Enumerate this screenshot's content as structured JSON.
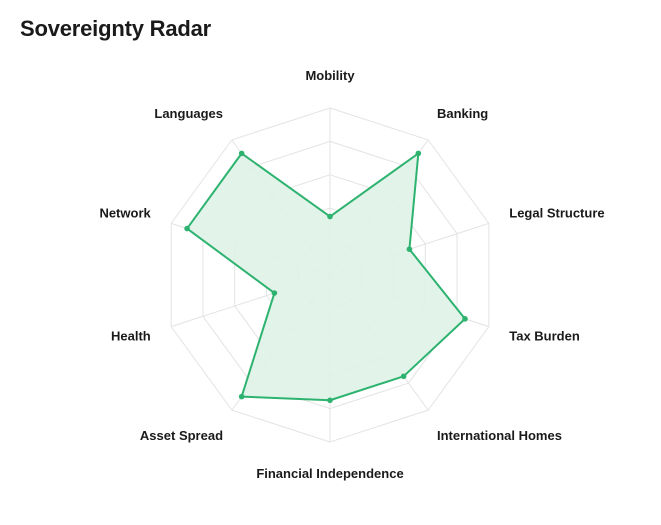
{
  "title": "Sovereignty Radar",
  "colors": {
    "series": "#2db36f",
    "fill": "#dff2e7",
    "grid": "#e3e3e3"
  },
  "chart_data": {
    "type": "radar",
    "title": "Sovereignty Radar",
    "grid": true,
    "scale_max": 10,
    "grid_levels": 5,
    "axes": [
      "Mobility",
      "Banking",
      "Legal Structure",
      "Tax Burden",
      "International Homes",
      "Financial Independence",
      "Asset Spread",
      "Health",
      "Network",
      "Languages"
    ],
    "series": [
      {
        "values": [
          3.5,
          9.0,
          5.0,
          8.5,
          7.5,
          7.5,
          9.0,
          3.5,
          9.0,
          9.0
        ]
      }
    ]
  }
}
